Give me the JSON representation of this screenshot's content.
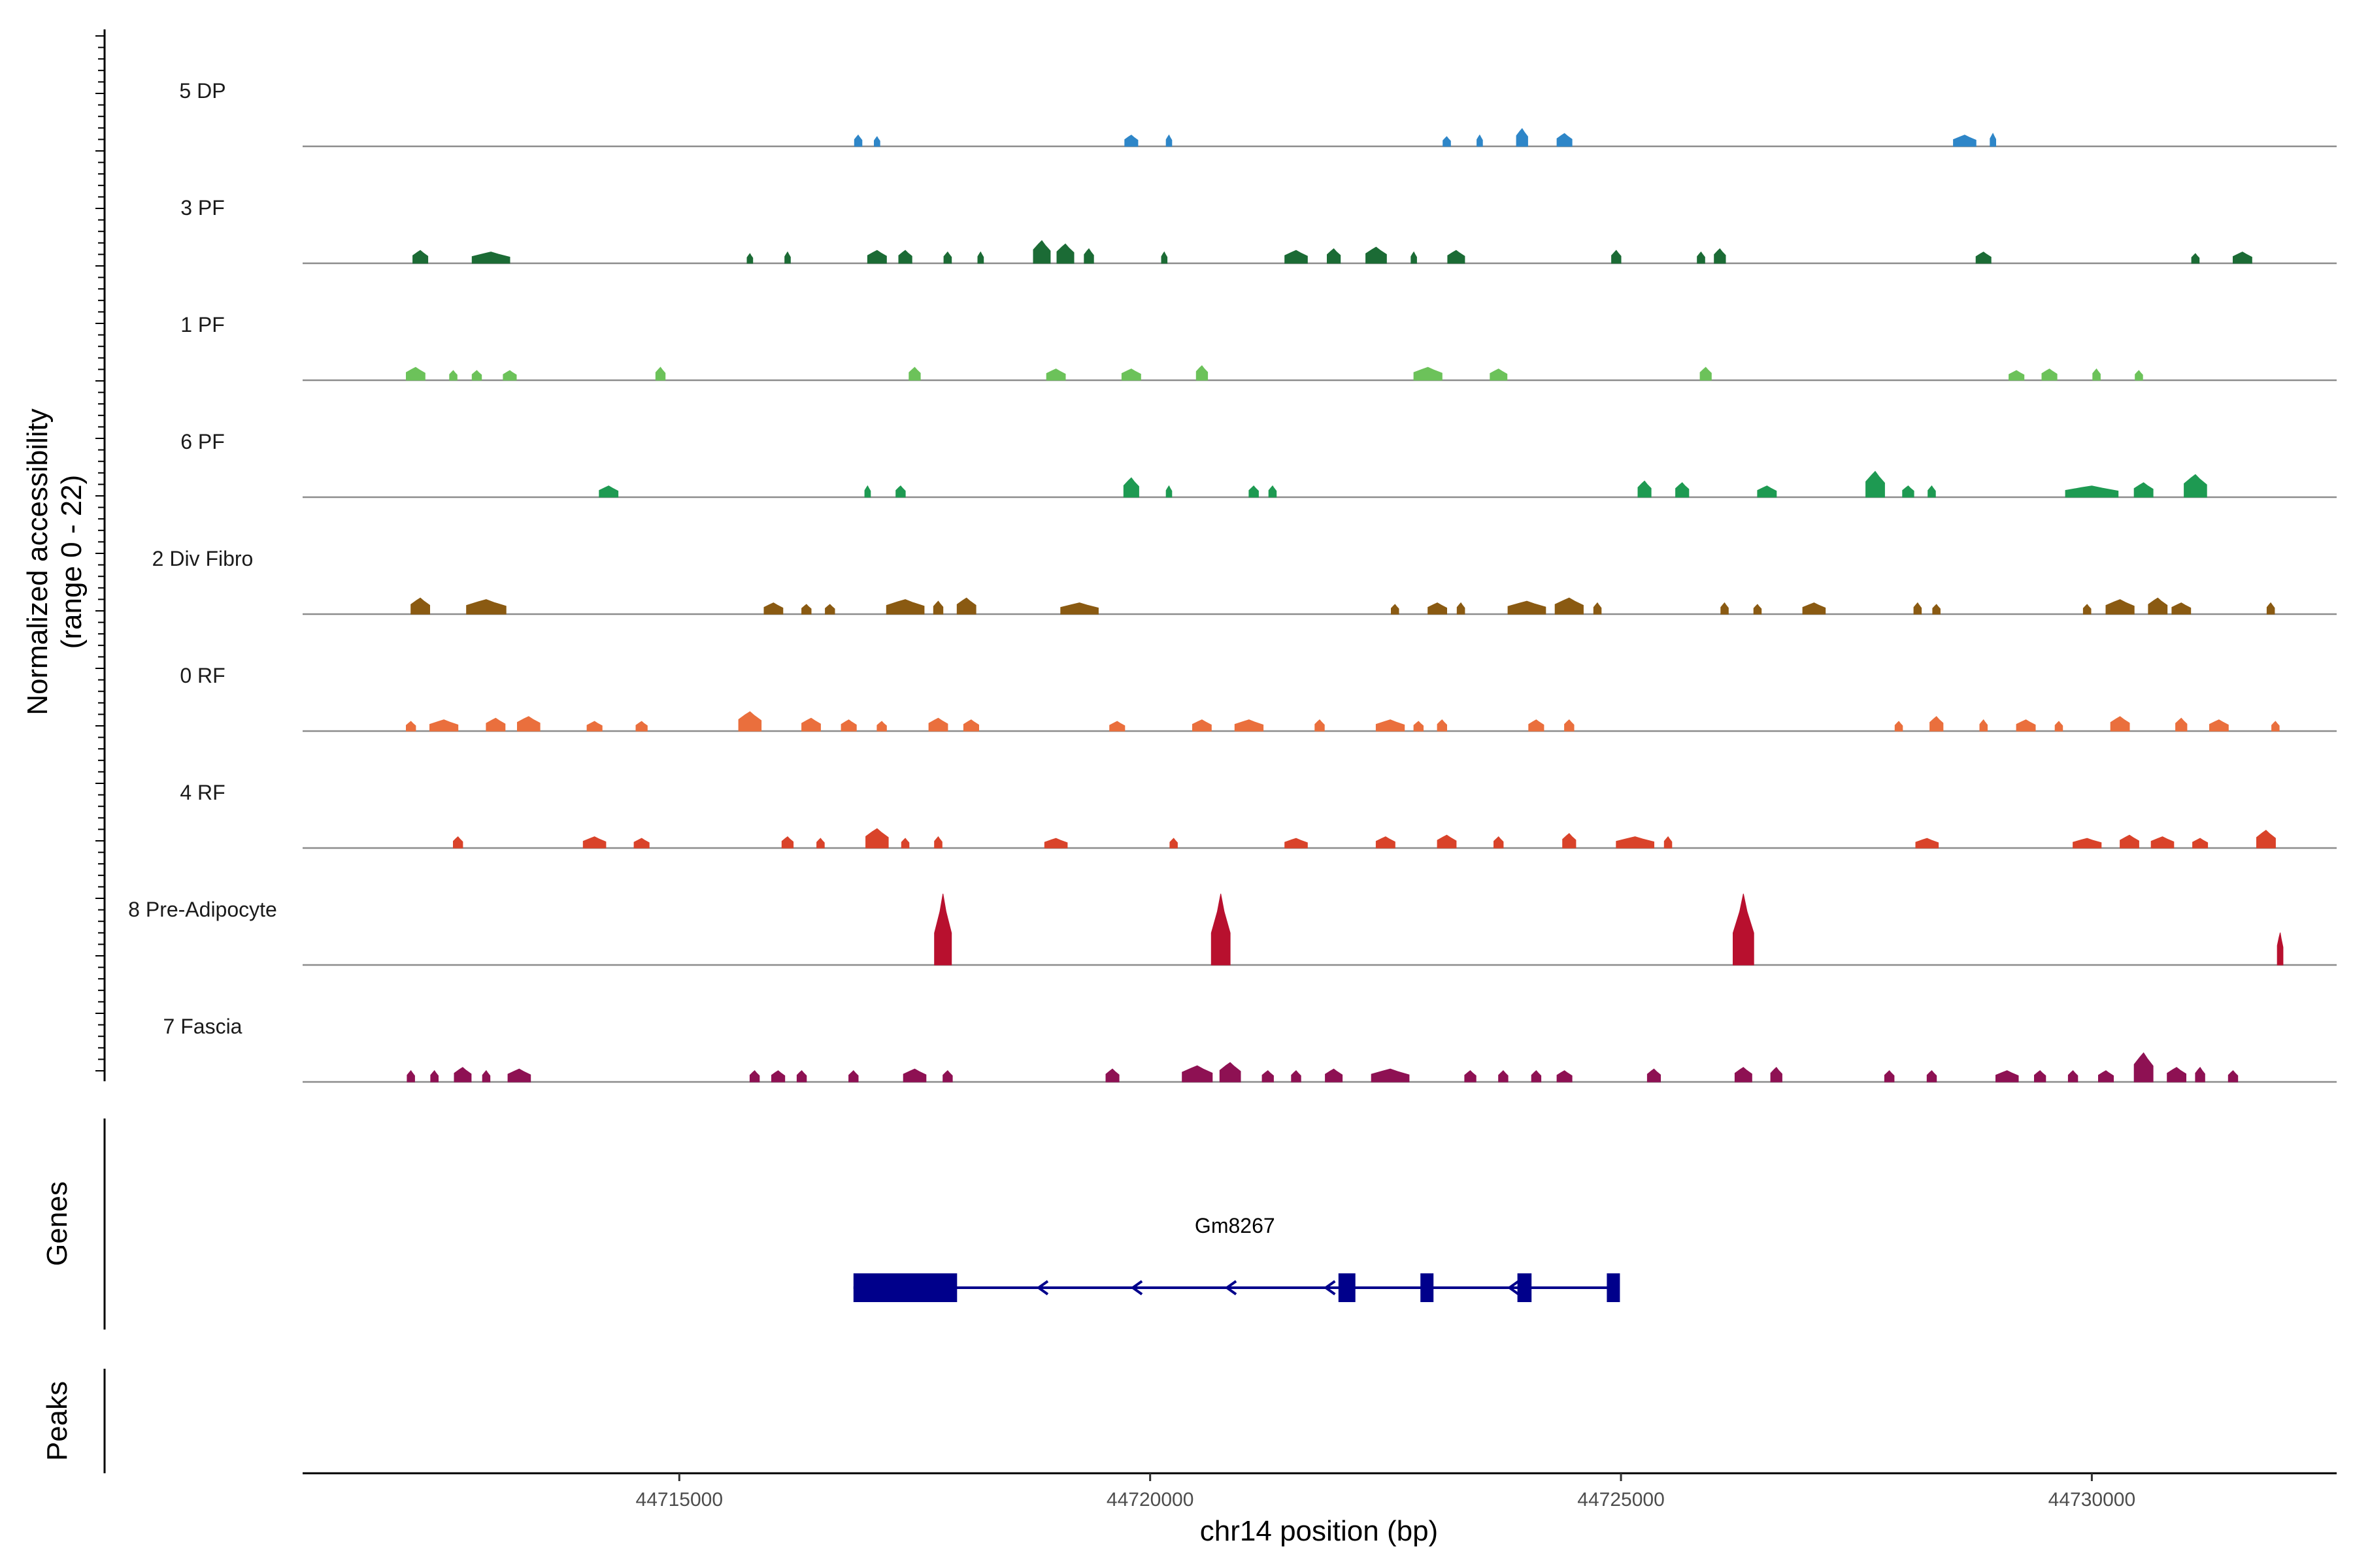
{
  "chart_data": {
    "type": "coverage",
    "x_range": [
      44711000,
      44732600
    ],
    "y_range": [
      0,
      22
    ],
    "ylabel_line1": "Normalized accessibility",
    "ylabel_line2": "(range 0 - 22)",
    "xlabel": "chr14 position (bp)",
    "xticks": [
      44715000,
      44720000,
      44725000,
      44730000
    ],
    "xtick_labels": [
      "44715000",
      "44720000",
      "44725000",
      "44730000"
    ],
    "tracks": [
      {
        "name": "5 DP",
        "color": "#2E86C8",
        "peaks": [
          [
            44716900,
            3.5,
            80
          ],
          [
            44717100,
            3,
            60
          ],
          [
            44719800,
            3.5,
            140
          ],
          [
            44720200,
            3.5,
            60
          ],
          [
            44723150,
            3,
            80
          ],
          [
            44723500,
            3.5,
            60
          ],
          [
            44723950,
            5.5,
            120
          ],
          [
            44724400,
            4,
            160
          ],
          [
            44728650,
            3.5,
            240
          ],
          [
            44728950,
            4,
            60
          ]
        ]
      },
      {
        "name": "3 PF",
        "color": "#1B6B35",
        "peaks": [
          [
            44712250,
            4,
            160
          ],
          [
            44713000,
            3.5,
            400
          ],
          [
            44715750,
            3,
            60
          ],
          [
            44716150,
            3.5,
            60
          ],
          [
            44717100,
            4,
            200
          ],
          [
            44717400,
            4,
            140
          ],
          [
            44717850,
            3.5,
            80
          ],
          [
            44718200,
            3.5,
            60
          ],
          [
            44718850,
            7,
            180
          ],
          [
            44719100,
            6,
            180
          ],
          [
            44719350,
            4.5,
            100
          ],
          [
            44720150,
            3.5,
            60
          ],
          [
            44721550,
            4,
            240
          ],
          [
            44721950,
            4.5,
            140
          ],
          [
            44722400,
            5,
            220
          ],
          [
            44722800,
            3.5,
            60
          ],
          [
            44723250,
            4,
            180
          ],
          [
            44724950,
            4,
            100
          ],
          [
            44725850,
            3.5,
            80
          ],
          [
            44726050,
            4.5,
            120
          ],
          [
            44728850,
            3.5,
            160
          ],
          [
            44731100,
            3,
            80
          ],
          [
            44731600,
            3.5,
            200
          ]
        ]
      },
      {
        "name": "1 PF",
        "color": "#6CC25A",
        "peaks": [
          [
            44712200,
            4,
            200
          ],
          [
            44712600,
            3,
            80
          ],
          [
            44712850,
            3,
            100
          ],
          [
            44713200,
            3,
            140
          ],
          [
            44714800,
            4,
            100
          ],
          [
            44717500,
            4,
            120
          ],
          [
            44719000,
            3.5,
            200
          ],
          [
            44719800,
            3.5,
            200
          ],
          [
            44720550,
            4.5,
            120
          ],
          [
            44722950,
            4,
            300
          ],
          [
            44723700,
            3.5,
            180
          ],
          [
            44725900,
            4,
            120
          ],
          [
            44729200,
            3,
            160
          ],
          [
            44729550,
            3.5,
            160
          ],
          [
            44730050,
            3.5,
            80
          ],
          [
            44730500,
            3,
            80
          ]
        ]
      },
      {
        "name": "6 PF",
        "color": "#1E9A52",
        "peaks": [
          [
            44714250,
            3.5,
            200
          ],
          [
            44717000,
            3.5,
            60
          ],
          [
            44717350,
            3.5,
            100
          ],
          [
            44719800,
            6,
            160
          ],
          [
            44720200,
            3.5,
            60
          ],
          [
            44721100,
            3.5,
            100
          ],
          [
            44721300,
            3.5,
            80
          ],
          [
            44725250,
            5,
            140
          ],
          [
            44725650,
            4.5,
            140
          ],
          [
            44726550,
            3.5,
            200
          ],
          [
            44727700,
            8,
            200
          ],
          [
            44728050,
            3.5,
            120
          ],
          [
            44728300,
            3.5,
            80
          ],
          [
            44730000,
            3.5,
            560
          ],
          [
            44730550,
            4.5,
            200
          ],
          [
            44731100,
            7,
            240
          ]
        ]
      },
      {
        "name": "2 Div Fibro",
        "color": "#8A5A12",
        "peaks": [
          [
            44712250,
            5,
            200
          ],
          [
            44712950,
            4.5,
            420
          ],
          [
            44716000,
            3.5,
            200
          ],
          [
            44716350,
            3,
            100
          ],
          [
            44716600,
            3,
            100
          ],
          [
            44717400,
            4.5,
            400
          ],
          [
            44717750,
            4,
            100
          ],
          [
            44718050,
            5,
            200
          ],
          [
            44719250,
            3.5,
            400
          ],
          [
            44722600,
            3,
            80
          ],
          [
            44723050,
            3.5,
            200
          ],
          [
            44723300,
            3.5,
            80
          ],
          [
            44724000,
            4,
            400
          ],
          [
            44724450,
            5,
            300
          ],
          [
            44724750,
            3.5,
            80
          ],
          [
            44726100,
            3.5,
            80
          ],
          [
            44726450,
            3,
            80
          ],
          [
            44727050,
            3.5,
            240
          ],
          [
            44728150,
            3.5,
            80
          ],
          [
            44728350,
            3,
            80
          ],
          [
            44729950,
            3,
            80
          ],
          [
            44730300,
            4.5,
            300
          ],
          [
            44730700,
            5,
            200
          ],
          [
            44730950,
            3.5,
            200
          ],
          [
            44731900,
            3.5,
            80
          ]
        ]
      },
      {
        "name": "0 RF",
        "color": "#EA6F3D",
        "peaks": [
          [
            44712150,
            3,
            100
          ],
          [
            44712500,
            3.5,
            300
          ],
          [
            44713050,
            4,
            200
          ],
          [
            44713400,
            4.5,
            240
          ],
          [
            44714100,
            3,
            160
          ],
          [
            44714600,
            3,
            120
          ],
          [
            44715750,
            6,
            240
          ],
          [
            44716400,
            4,
            200
          ],
          [
            44716800,
            3.5,
            160
          ],
          [
            44717150,
            3,
            100
          ],
          [
            44717750,
            4,
            200
          ],
          [
            44718100,
            3.5,
            160
          ],
          [
            44719650,
            3,
            160
          ],
          [
            44720550,
            3.5,
            200
          ],
          [
            44721050,
            3.5,
            300
          ],
          [
            44721800,
            3.5,
            100
          ],
          [
            44722550,
            3.5,
            300
          ],
          [
            44722850,
            3,
            100
          ],
          [
            44723100,
            3.5,
            100
          ],
          [
            44724100,
            3.5,
            160
          ],
          [
            44724450,
            3.5,
            100
          ],
          [
            44727950,
            3,
            80
          ],
          [
            44728350,
            4.5,
            140
          ],
          [
            44728850,
            3.5,
            80
          ],
          [
            44729300,
            3.5,
            200
          ],
          [
            44729650,
            3,
            80
          ],
          [
            44730300,
            4.5,
            200
          ],
          [
            44730950,
            4,
            120
          ],
          [
            44731350,
            3.5,
            200
          ],
          [
            44731950,
            3,
            80
          ]
        ]
      },
      {
        "name": "4 RF",
        "color": "#D9432A",
        "peaks": [
          [
            44712650,
            3.5,
            100
          ],
          [
            44714100,
            3.5,
            240
          ],
          [
            44714600,
            3,
            160
          ],
          [
            44716150,
            3.5,
            120
          ],
          [
            44716500,
            3,
            80
          ],
          [
            44717100,
            6,
            240
          ],
          [
            44717400,
            3,
            80
          ],
          [
            44717750,
            3.5,
            80
          ],
          [
            44719000,
            3,
            240
          ],
          [
            44720250,
            3,
            80
          ],
          [
            44721550,
            3,
            240
          ],
          [
            44722500,
            3.5,
            200
          ],
          [
            44723150,
            4,
            200
          ],
          [
            44723700,
            3.5,
            100
          ],
          [
            44724450,
            4.5,
            140
          ],
          [
            44725150,
            3.5,
            400
          ],
          [
            44725500,
            3.5,
            80
          ],
          [
            44728250,
            3,
            240
          ],
          [
            44729950,
            3,
            300
          ],
          [
            44730400,
            4,
            200
          ],
          [
            44730750,
            3.5,
            240
          ],
          [
            44731150,
            3,
            160
          ],
          [
            44731850,
            5.5,
            200
          ]
        ]
      },
      {
        "name": "8 Pre-Adipocyte",
        "color": "#B8102E",
        "peaks": [
          [
            44717800,
            22,
            180
          ],
          [
            44720750,
            22,
            200
          ],
          [
            44726300,
            22,
            220
          ],
          [
            44732000,
            10,
            60
          ]
        ]
      },
      {
        "name": "7 Fascia",
        "color": "#8E1153",
        "peaks": [
          [
            44712150,
            3.5,
            80
          ],
          [
            44712400,
            3.5,
            80
          ],
          [
            44712700,
            4.5,
            180
          ],
          [
            44712950,
            3.5,
            80
          ],
          [
            44713300,
            4,
            240
          ],
          [
            44715800,
            3.5,
            100
          ],
          [
            44716050,
            3.5,
            140
          ],
          [
            44716300,
            3.5,
            100
          ],
          [
            44716850,
            3.5,
            100
          ],
          [
            44717500,
            4,
            240
          ],
          [
            44717850,
            3.5,
            100
          ],
          [
            44719600,
            4,
            140
          ],
          [
            44720500,
            5,
            320
          ],
          [
            44720850,
            6,
            220
          ],
          [
            44721250,
            3.5,
            120
          ],
          [
            44721550,
            3.5,
            100
          ],
          [
            44721950,
            4,
            180
          ],
          [
            44722550,
            4,
            400
          ],
          [
            44723400,
            3.5,
            120
          ],
          [
            44723750,
            3.5,
            100
          ],
          [
            44724100,
            3.5,
            100
          ],
          [
            44724400,
            3.5,
            160
          ],
          [
            44725350,
            4,
            140
          ],
          [
            44726300,
            4.5,
            180
          ],
          [
            44726650,
            4.5,
            120
          ],
          [
            44727850,
            3.5,
            100
          ],
          [
            44728300,
            3.5,
            100
          ],
          [
            44729100,
            3.5,
            240
          ],
          [
            44729450,
            3.5,
            120
          ],
          [
            44729800,
            3.5,
            100
          ],
          [
            44730150,
            3.5,
            160
          ],
          [
            44730550,
            9,
            200
          ],
          [
            44730900,
            4.5,
            200
          ],
          [
            44731150,
            4.5,
            100
          ],
          [
            44731500,
            3.5,
            100
          ]
        ]
      }
    ],
    "genes_label": "Genes",
    "peaks_label": "Peaks",
    "gene": {
      "name": "Gm8267",
      "color": "#00008B",
      "start": 44716850,
      "end": 44724950,
      "strand": "-",
      "exons": [
        [
          44716850,
          44717950
        ],
        [
          44722000,
          44722180
        ],
        [
          44722870,
          44722990
        ],
        [
          44723900,
          44724050
        ],
        [
          44724850,
          44724950
        ]
      ],
      "arrows": [
        44718850,
        44719850,
        44720850,
        44721900,
        44723850
      ]
    }
  }
}
